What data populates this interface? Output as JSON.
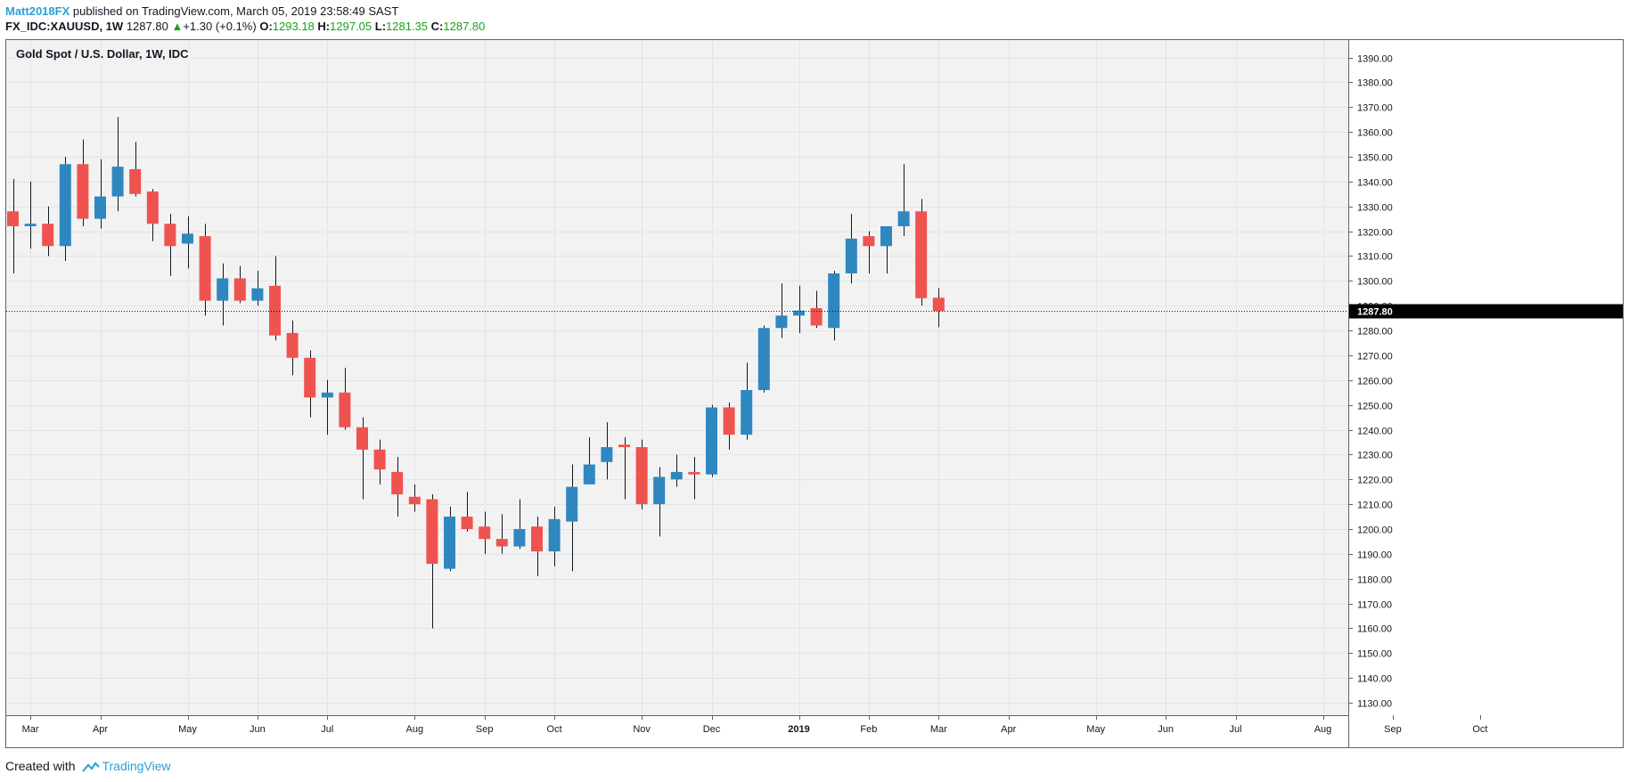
{
  "header": {
    "author": "Matt2018FX",
    "published_text": " published on TradingView.com, March 05, 2019 23:58:49 SAST",
    "symbol": "FX_IDC:XAUUSD, 1W",
    "last": "1287.80",
    "change": "+1.30 (+0.1%)",
    "o_label": "O:",
    "o_value": "1293.18",
    "h_label": "H:",
    "h_value": "1297.05",
    "l_label": "L:",
    "l_value": "1281.35",
    "c_label": "C:",
    "c_value": "1287.80"
  },
  "footer": {
    "created_with": "Created with",
    "brand": "TradingView"
  },
  "colors": {
    "up": "#2f87c0",
    "down": "#ef5350",
    "wick": "#131722",
    "price_tag_bg": "#000000"
  },
  "chart_data": {
    "type": "candlestick",
    "title": "Gold Spot / U.S. Dollar, 1W, IDC",
    "ylim": [
      1125,
      1397
    ],
    "y_ticks": [
      1130,
      1140,
      1150,
      1160,
      1170,
      1180,
      1190,
      1200,
      1210,
      1220,
      1230,
      1240,
      1250,
      1260,
      1270,
      1280,
      1290,
      1300,
      1310,
      1320,
      1330,
      1340,
      1350,
      1360,
      1370,
      1380,
      1390
    ],
    "current_price": 1287.8,
    "current_price_label": "1287.80",
    "x_axis_labels": [
      {
        "label": "Mar",
        "week": 1
      },
      {
        "label": "Apr",
        "week": 5
      },
      {
        "label": "May",
        "week": 10
      },
      {
        "label": "Jun",
        "week": 14
      },
      {
        "label": "Jul",
        "week": 18
      },
      {
        "label": "Aug",
        "week": 23
      },
      {
        "label": "Sep",
        "week": 27
      },
      {
        "label": "Oct",
        "week": 31
      },
      {
        "label": "Nov",
        "week": 36
      },
      {
        "label": "Dec",
        "week": 40
      },
      {
        "label": "2019",
        "week": 45,
        "bold": true
      },
      {
        "label": "Feb",
        "week": 49
      },
      {
        "label": "Mar",
        "week": 53
      },
      {
        "label": "Apr",
        "week": 57
      },
      {
        "label": "May",
        "week": 62
      },
      {
        "label": "Jun",
        "week": 66
      },
      {
        "label": "Jul",
        "week": 70
      },
      {
        "label": "Aug",
        "week": 75
      },
      {
        "label": "Sep",
        "week": 79
      },
      {
        "label": "Oct",
        "week": 84
      }
    ],
    "candles": [
      {
        "o": 1328,
        "h": 1341,
        "l": 1303,
        "c": 1322
      },
      {
        "o": 1322,
        "h": 1340,
        "l": 1313,
        "c": 1323
      },
      {
        "o": 1323,
        "h": 1330,
        "l": 1310,
        "c": 1314
      },
      {
        "o": 1314,
        "h": 1350,
        "l": 1308,
        "c": 1347
      },
      {
        "o": 1347,
        "h": 1357,
        "l": 1322,
        "c": 1325
      },
      {
        "o": 1325,
        "h": 1349,
        "l": 1321,
        "c": 1334
      },
      {
        "o": 1334,
        "h": 1366,
        "l": 1328,
        "c": 1346
      },
      {
        "o": 1345,
        "h": 1356,
        "l": 1334,
        "c": 1335
      },
      {
        "o": 1336,
        "h": 1337,
        "l": 1316,
        "c": 1323
      },
      {
        "o": 1323,
        "h": 1327,
        "l": 1302,
        "c": 1314
      },
      {
        "o": 1315,
        "h": 1326,
        "l": 1305,
        "c": 1319
      },
      {
        "o": 1318,
        "h": 1323,
        "l": 1286,
        "c": 1292
      },
      {
        "o": 1292,
        "h": 1307,
        "l": 1282,
        "c": 1301
      },
      {
        "o": 1301,
        "h": 1306,
        "l": 1291,
        "c": 1292
      },
      {
        "o": 1292,
        "h": 1304,
        "l": 1290,
        "c": 1297
      },
      {
        "o": 1298,
        "h": 1310,
        "l": 1276,
        "c": 1278
      },
      {
        "o": 1279,
        "h": 1284,
        "l": 1262,
        "c": 1269
      },
      {
        "o": 1269,
        "h": 1272,
        "l": 1245,
        "c": 1253
      },
      {
        "o": 1253,
        "h": 1260,
        "l": 1238,
        "c": 1255
      },
      {
        "o": 1255,
        "h": 1265,
        "l": 1240,
        "c": 1241
      },
      {
        "o": 1241,
        "h": 1245,
        "l": 1212,
        "c": 1232
      },
      {
        "o": 1232,
        "h": 1236,
        "l": 1218,
        "c": 1224
      },
      {
        "o": 1223,
        "h": 1229,
        "l": 1205,
        "c": 1214
      },
      {
        "o": 1213,
        "h": 1218,
        "l": 1207,
        "c": 1210
      },
      {
        "o": 1212,
        "h": 1214,
        "l": 1160,
        "c": 1186
      },
      {
        "o": 1184,
        "h": 1209,
        "l": 1183,
        "c": 1205
      },
      {
        "o": 1205,
        "h": 1215,
        "l": 1199,
        "c": 1200
      },
      {
        "o": 1201,
        "h": 1207,
        "l": 1190,
        "c": 1196
      },
      {
        "o": 1196,
        "h": 1206,
        "l": 1190,
        "c": 1193
      },
      {
        "o": 1193,
        "h": 1212,
        "l": 1192,
        "c": 1200
      },
      {
        "o": 1201,
        "h": 1205,
        "l": 1181,
        "c": 1191
      },
      {
        "o": 1191,
        "h": 1209,
        "l": 1185,
        "c": 1204
      },
      {
        "o": 1203,
        "h": 1226,
        "l": 1183,
        "c": 1217
      },
      {
        "o": 1218,
        "h": 1237,
        "l": 1218,
        "c": 1226
      },
      {
        "o": 1227,
        "h": 1243,
        "l": 1220,
        "c": 1233
      },
      {
        "o": 1234,
        "h": 1237,
        "l": 1212,
        "c": 1233
      },
      {
        "o": 1233,
        "h": 1236,
        "l": 1208,
        "c": 1210
      },
      {
        "o": 1210,
        "h": 1225,
        "l": 1197,
        "c": 1221
      },
      {
        "o": 1220,
        "h": 1230,
        "l": 1217,
        "c": 1223
      },
      {
        "o": 1223,
        "h": 1229,
        "l": 1212,
        "c": 1222
      },
      {
        "o": 1222,
        "h": 1250,
        "l": 1221,
        "c": 1249
      },
      {
        "o": 1249,
        "h": 1251,
        "l": 1232,
        "c": 1238
      },
      {
        "o": 1238,
        "h": 1267,
        "l": 1236,
        "c": 1256
      },
      {
        "o": 1256,
        "h": 1282,
        "l": 1255,
        "c": 1281
      },
      {
        "o": 1281,
        "h": 1299,
        "l": 1277,
        "c": 1286
      },
      {
        "o": 1286,
        "h": 1298,
        "l": 1279,
        "c": 1288
      },
      {
        "o": 1289,
        "h": 1296,
        "l": 1281,
        "c": 1282
      },
      {
        "o": 1281,
        "h": 1304,
        "l": 1276,
        "c": 1303
      },
      {
        "o": 1303,
        "h": 1327,
        "l": 1299,
        "c": 1317
      },
      {
        "o": 1318,
        "h": 1320,
        "l": 1303,
        "c": 1314
      },
      {
        "o": 1314,
        "h": 1322,
        "l": 1303,
        "c": 1322
      },
      {
        "o": 1322,
        "h": 1347,
        "l": 1318,
        "c": 1328
      },
      {
        "o": 1328,
        "h": 1333,
        "l": 1290,
        "c": 1293
      },
      {
        "o": 1293.18,
        "h": 1297.05,
        "l": 1281.35,
        "c": 1287.8
      }
    ]
  }
}
